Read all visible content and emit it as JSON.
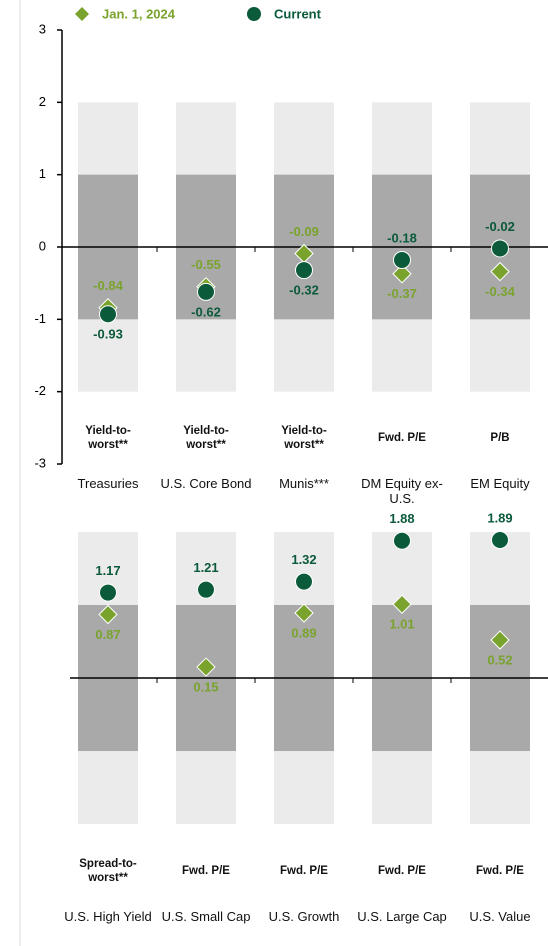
{
  "chart_data": [
    {
      "type": "dot",
      "categories": [
        "Treasuries",
        "U.S. Core Bond",
        "Munis***",
        "DM Equity ex-U.S.",
        "EM Equity"
      ],
      "descriptors": [
        "Yield-to-worst**",
        "Yield-to-worst**",
        "Yield-to-worst**",
        "Fwd. P/E",
        "P/B"
      ],
      "series": [
        {
          "name": "Jan. 1, 2024",
          "color": "#7aa32e",
          "marker": "diamond",
          "values": [
            -0.84,
            -0.55,
            -0.09,
            -0.37,
            -0.34
          ]
        },
        {
          "name": "Current",
          "color": "#0b5a3a",
          "marker": "circle",
          "values": [
            -0.93,
            -0.62,
            -0.32,
            -0.18,
            -0.02
          ]
        }
      ],
      "ylim": [
        -3,
        3
      ],
      "yticks": [
        -3,
        -2,
        -1,
        0,
        1,
        2,
        3
      ],
      "shaded_ranges": [
        [
          -2,
          2
        ],
        [
          -1,
          1
        ]
      ]
    },
    {
      "type": "dot",
      "categories": [
        "U.S. High Yield",
        "U.S. Small Cap",
        "U.S. Growth",
        "U.S. Large Cap",
        "U.S. Value"
      ],
      "descriptors": [
        "Spread-to-worst**",
        "Fwd. P/E",
        "Fwd. P/E",
        "Fwd. P/E",
        "Fwd. P/E"
      ],
      "series": [
        {
          "name": "Jan. 1, 2024",
          "color": "#7aa32e",
          "marker": "diamond",
          "values": [
            0.87,
            0.15,
            0.89,
            1.01,
            0.52
          ]
        },
        {
          "name": "Current",
          "color": "#0b5a3a",
          "marker": "circle",
          "values": [
            1.17,
            1.21,
            1.32,
            1.88,
            1.89
          ]
        }
      ],
      "ylim": [
        -3,
        2
      ],
      "yticks": [],
      "shaded_ranges": [
        [
          -2,
          2
        ],
        [
          -1,
          1
        ]
      ]
    }
  ]
}
